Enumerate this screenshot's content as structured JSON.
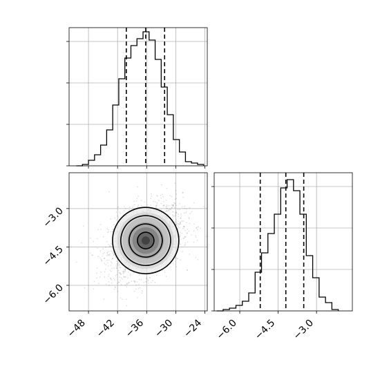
{
  "chart_data": {
    "type": "corner",
    "grid": true,
    "panels": [
      {
        "id": "hist-x",
        "type": "histogram",
        "xlim": [
          -52,
          -23.5
        ],
        "xticks": [
          -48,
          -42,
          -36,
          -30,
          -24
        ],
        "yticks": [
          0,
          0.3,
          0.6,
          0.9
        ],
        "ylim": [
          0,
          1.0
        ],
        "bin_edges": [
          -50.5,
          -49.25,
          -48,
          -46.75,
          -45.5,
          -44.25,
          -43,
          -41.75,
          -40.5,
          -39.25,
          -38,
          -36.75,
          -35.5,
          -34.25,
          -33,
          -31.75,
          -30.5,
          -29.25,
          -28,
          -26.75,
          -25.5,
          -24.25
        ],
        "counts": [
          0.0,
          0.01,
          0.04,
          0.08,
          0.15,
          0.26,
          0.44,
          0.63,
          0.78,
          0.87,
          0.92,
          0.97,
          0.91,
          0.77,
          0.57,
          0.37,
          0.19,
          0.1,
          0.03,
          0.02,
          0.01
        ],
        "quantiles": [
          -40.2,
          -36.2,
          -32.3
        ]
      },
      {
        "id": "hist-y",
        "type": "histogram",
        "xlim": [
          -7.0,
          -1.6
        ],
        "xticks": [
          -6.0,
          -4.5,
          -3.0
        ],
        "xticklabels": [
          "−6.0",
          "−4.5",
          "−3.0"
        ],
        "yticks": [
          0,
          0.3,
          0.6,
          0.9
        ],
        "ylim": [
          0,
          1.0
        ],
        "bin_edges": [
          -6.9,
          -6.65,
          -6.4,
          -6.15,
          -5.9,
          -5.65,
          -5.4,
          -5.15,
          -4.9,
          -4.65,
          -4.4,
          -4.15,
          -3.9,
          -3.65,
          -3.4,
          -3.15,
          -2.9,
          -2.65,
          -2.4,
          -2.15
        ],
        "counts": [
          0.0,
          0.01,
          0.02,
          0.04,
          0.07,
          0.13,
          0.28,
          0.42,
          0.56,
          0.7,
          0.89,
          0.95,
          0.87,
          0.7,
          0.4,
          0.24,
          0.1,
          0.06,
          0.01
        ],
        "quantiles": [
          -5.2,
          -4.2,
          -3.5
        ]
      },
      {
        "id": "joint",
        "type": "scatter-contour",
        "xlim": [
          -52,
          -23.5
        ],
        "ylim": [
          -7.0,
          -1.6
        ],
        "xticks": [
          -48,
          -42,
          -36,
          -30,
          -24
        ],
        "xticklabels": [
          "−48",
          "−42",
          "−36",
          "−30",
          "−24"
        ],
        "yticks": [
          -6.0,
          -4.5,
          -3.0
        ],
        "yticklabels": [
          "−6.0",
          "−4.5",
          "−3.0"
        ],
        "center": [
          -36.2,
          -4.25
        ],
        "sigma": [
          3.8,
          0.72
        ],
        "correlation": 0.35,
        "contour_levels_sigma": [
          0.5,
          1.0,
          1.5,
          2.0
        ]
      }
    ]
  }
}
